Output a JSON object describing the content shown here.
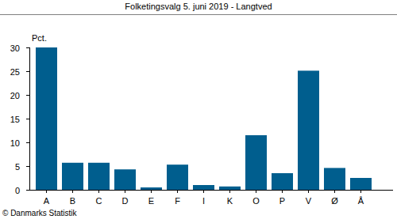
{
  "chart_data": {
    "type": "bar",
    "title": "Folketingsvalg 5. juni 2019 - Langtved",
    "ylabel": "Pct.",
    "source": "© Danmarks Statistik",
    "categories": [
      "A",
      "B",
      "C",
      "D",
      "E",
      "F",
      "I",
      "K",
      "O",
      "P",
      "V",
      "Ø",
      "Å"
    ],
    "values": [
      30.0,
      5.7,
      5.7,
      4.3,
      0.5,
      5.3,
      1.0,
      0.7,
      11.5,
      3.5,
      25.1,
      4.6,
      2.5
    ],
    "color": "#005e8e",
    "ylim": [
      0,
      30
    ],
    "yticks": [
      0,
      5,
      10,
      15,
      20,
      25,
      30
    ],
    "grid": false
  }
}
